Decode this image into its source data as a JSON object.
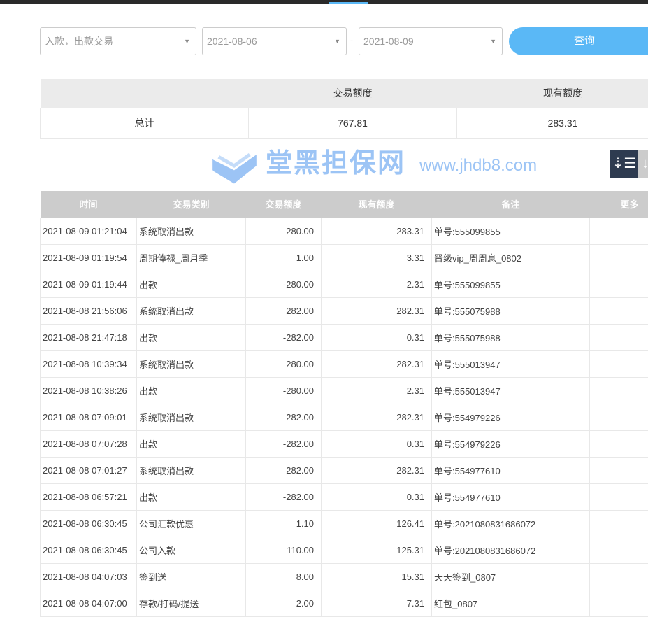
{
  "filters": {
    "type": "入款，出款交易",
    "start_date": "2021-08-06",
    "end_date": "2021-08-09",
    "separator": "-",
    "query_label": "查询"
  },
  "summary": {
    "headers": [
      "",
      "交易额度",
      "现有额度"
    ],
    "row": [
      "总计",
      "767.81",
      "283.31"
    ]
  },
  "sort": {
    "icon": "sort-desc-icon"
  },
  "table": {
    "headers": [
      "时间",
      "交易类别",
      "交易额度",
      "现有额度",
      "备注",
      "更多"
    ],
    "rows": [
      [
        "2021-08-09 01:21:04",
        "系统取消出款",
        "280.00",
        "283.31",
        "单号:555099855"
      ],
      [
        "2021-08-09 01:19:54",
        "周期俸禄_周月季",
        "1.00",
        "3.31",
        "晋级vip_周周息_0802"
      ],
      [
        "2021-08-09 01:19:44",
        "出款",
        "-280.00",
        "2.31",
        "单号:555099855"
      ],
      [
        "2021-08-08 21:56:06",
        "系统取消出款",
        "282.00",
        "282.31",
        "单号:555075988"
      ],
      [
        "2021-08-08 21:47:18",
        "出款",
        "-282.00",
        "0.31",
        "单号:555075988"
      ],
      [
        "2021-08-08 10:39:34",
        "系统取消出款",
        "280.00",
        "282.31",
        "单号:555013947"
      ],
      [
        "2021-08-08 10:38:26",
        "出款",
        "-280.00",
        "2.31",
        "单号:555013947"
      ],
      [
        "2021-08-08 07:09:01",
        "系统取消出款",
        "282.00",
        "282.31",
        "单号:554979226"
      ],
      [
        "2021-08-08 07:07:28",
        "出款",
        "-282.00",
        "0.31",
        "单号:554979226"
      ],
      [
        "2021-08-08 07:01:27",
        "系统取消出款",
        "282.00",
        "282.31",
        "单号:554977610"
      ],
      [
        "2021-08-08 06:57:21",
        "出款",
        "-282.00",
        "0.31",
        "单号:554977610"
      ],
      [
        "2021-08-08 06:30:45",
        "公司汇款优惠",
        "1.10",
        "126.41",
        "单号:2021080831686072"
      ],
      [
        "2021-08-08 06:30:45",
        "公司入款",
        "110.00",
        "125.31",
        "单号:2021080831686072"
      ],
      [
        "2021-08-08 04:07:03",
        "签到送",
        "8.00",
        "15.31",
        "天天签到_0807"
      ],
      [
        "2021-08-08 04:07:00",
        "存款/打码/提送",
        "2.00",
        "7.31",
        "红包_0807"
      ]
    ]
  },
  "watermark": {
    "name": "堂黑担保网",
    "url": "www.jhdb8.com"
  }
}
